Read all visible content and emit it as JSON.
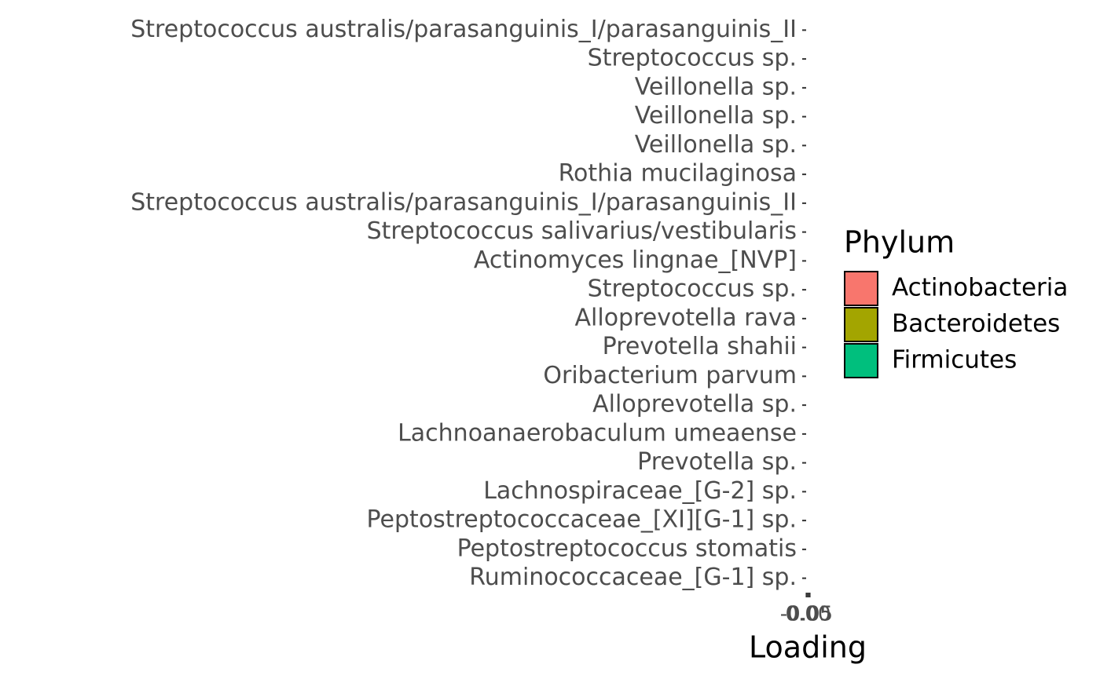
{
  "chart_data": {
    "type": "bar",
    "orientation": "horizontal",
    "categories": [
      "Streptococcus australis/parasanguinis_I/parasanguinis_II",
      "Streptococcus sp.",
      "Veillonella sp.",
      "Veillonella sp.",
      "Veillonella sp.",
      "Rothia mucilaginosa",
      "Streptococcus australis/parasanguinis_I/parasanguinis_II",
      "Streptococcus salivarius/vestibularis",
      "Actinomyces lingnae_[NVP]",
      "Streptococcus sp.",
      "Alloprevotella rava",
      "Prevotella shahii",
      "Oribacterium parvum",
      "Alloprevotella sp.",
      "Lachnoanaerobaculum umeaense",
      "Prevotella sp.",
      "Lachnospiraceae_[G-2] sp.",
      "Peptostreptococcaceae_[XI][G-1] sp.",
      "Peptostreptococcus stomatis",
      "Ruminococcaceae_[G-1] sp."
    ],
    "series": [
      {
        "name": "Actinobacteria",
        "color": "#F8766D",
        "values": [
          null,
          null,
          null,
          null,
          null,
          0,
          null,
          null,
          0,
          null,
          null,
          null,
          null,
          null,
          null,
          null,
          null,
          null,
          null,
          null
        ]
      },
      {
        "name": "Bacteroidetes",
        "color": "#A3A500",
        "values": [
          null,
          null,
          null,
          null,
          null,
          null,
          null,
          null,
          null,
          null,
          0,
          0,
          null,
          0,
          null,
          0,
          null,
          null,
          null,
          null
        ]
      },
      {
        "name": "Firmicutes",
        "color": "#00BF7D",
        "values": [
          0,
          0,
          0,
          0,
          0,
          null,
          0,
          0,
          null,
          0,
          null,
          null,
          0,
          null,
          0,
          null,
          0,
          0,
          0,
          0
        ]
      }
    ],
    "xlabel": "Loading",
    "xlim": [
      -0.06,
      0.06
    ],
    "xticks": [
      -0.05,
      {
        "value": 0,
        "label": "0.00"
      },
      0.05
    ],
    "legend_title": "Phylum",
    "legend": "right"
  }
}
